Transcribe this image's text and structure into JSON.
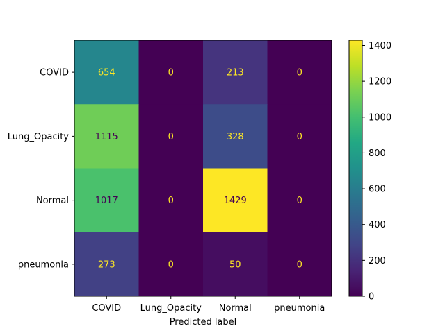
{
  "chart_data": {
    "type": "heatmap",
    "title": "",
    "xlabel": "Predicted label",
    "ylabel": "",
    "row_labels": [
      "COVID",
      "Lung_Opacity",
      "Normal",
      "pneumonia"
    ],
    "col_labels": [
      "COVID",
      "Lung_Opacity",
      "Normal",
      "pneumonia"
    ],
    "values": [
      [
        654,
        0,
        213,
        0
      ],
      [
        1115,
        0,
        328,
        0
      ],
      [
        1017,
        0,
        1429,
        0
      ],
      [
        273,
        0,
        50,
        0
      ]
    ],
    "colorbar": {
      "min": 0,
      "max": 1429,
      "ticks": [
        0,
        200,
        400,
        600,
        800,
        1000,
        1200,
        1400
      ]
    },
    "colormap": "viridis",
    "text_colors": {
      "on_dark": "#fde725",
      "on_light": "#440154"
    }
  }
}
